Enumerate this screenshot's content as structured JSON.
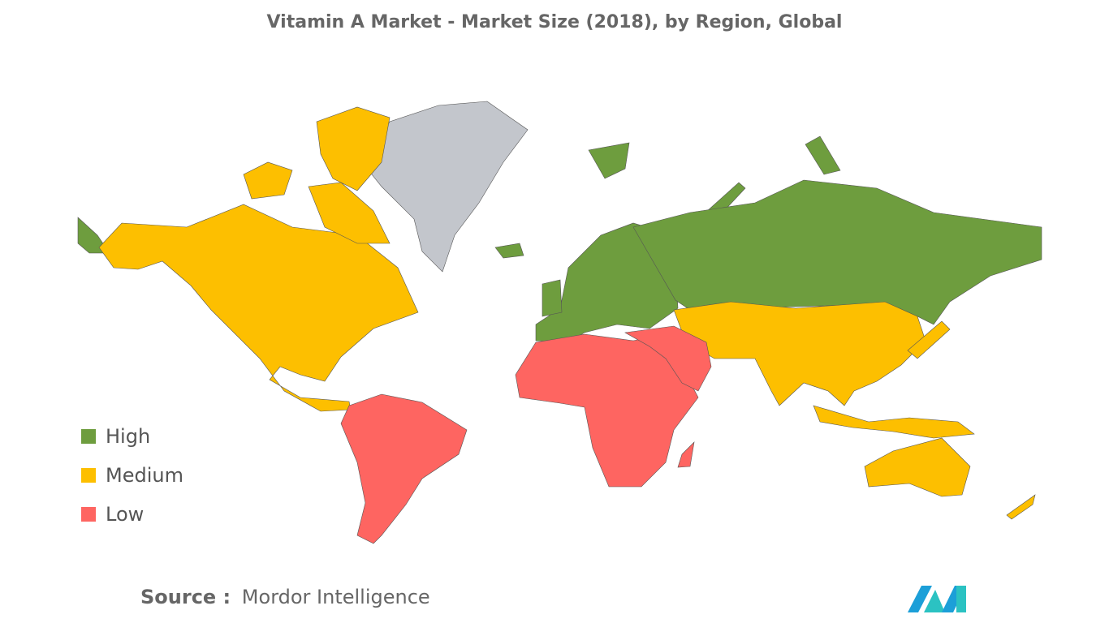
{
  "title": "Vitamin A Market - Market Size (2018), by Region, Global",
  "legend": {
    "items": [
      {
        "label": "High",
        "color": "#6e9d3e"
      },
      {
        "label": "Medium",
        "color": "#fdbf00"
      },
      {
        "label": "Low",
        "color": "#fe6561"
      }
    ]
  },
  "source": {
    "prefix": "Source :",
    "text": "Mordor Intelligence"
  }
}
